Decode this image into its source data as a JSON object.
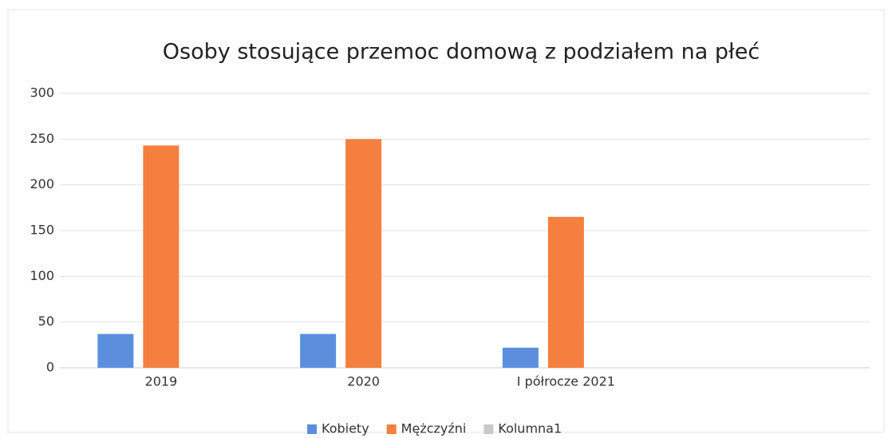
{
  "chart_data": {
    "type": "bar",
    "title": "Osoby stosujące przemoc domową z podziałem na płeć",
    "categories": [
      "2019",
      "2020",
      "I półrocze 2021",
      null
    ],
    "series": [
      {
        "name": "Kobiety",
        "color": "#5b8fde",
        "values": [
          37,
          37,
          22,
          null
        ]
      },
      {
        "name": "Mężczyźni",
        "color": "#f47f3f",
        "values": [
          243,
          250,
          165,
          null
        ]
      },
      {
        "name": "Kolumna1",
        "color": "#c8c8c8",
        "values": [
          null,
          null,
          null,
          null
        ]
      }
    ],
    "ylim": [
      0,
      300
    ],
    "yticks": [
      0,
      50,
      100,
      150,
      200,
      250,
      300
    ],
    "grid": true,
    "legend": "bottom"
  }
}
